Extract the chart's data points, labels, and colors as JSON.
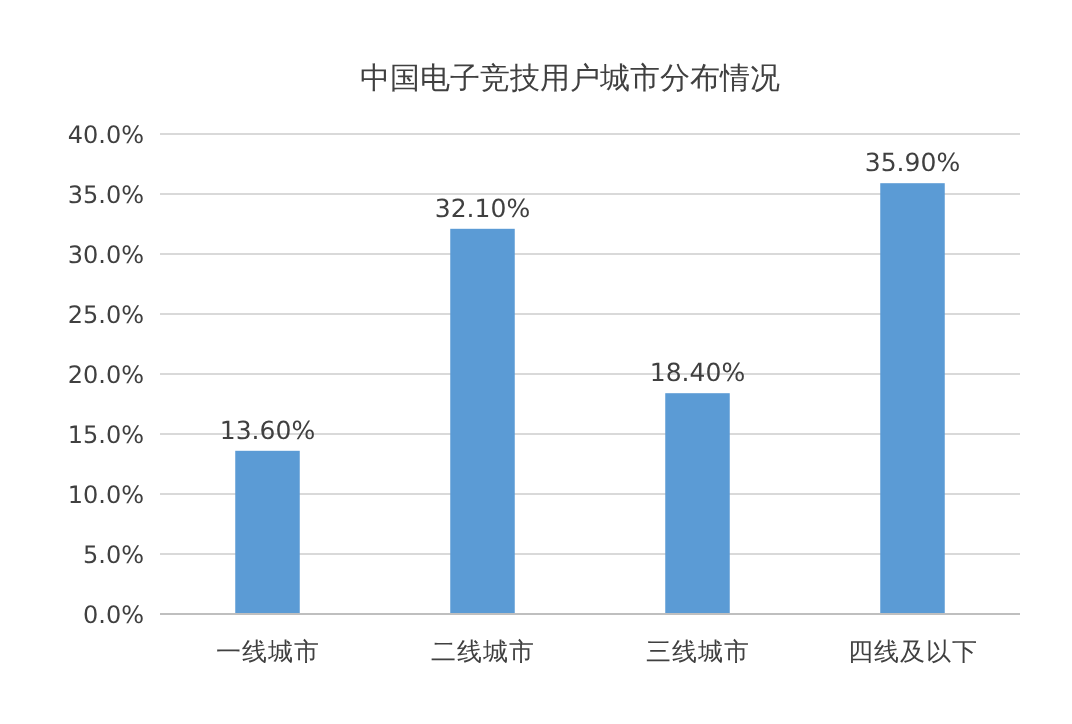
{
  "chart_data": {
    "type": "bar",
    "title": "中国电子竞技用户城市分布情况",
    "categories": [
      "一线城市",
      "二线城市",
      "三线城市",
      "四线及以下"
    ],
    "values": [
      13.6,
      32.1,
      18.4,
      35.9
    ],
    "value_labels": [
      "13.60%",
      "32.10%",
      "18.40%",
      "35.90%"
    ],
    "color": "#5b9bd5",
    "ylim": [
      0,
      40
    ],
    "yticks": [
      {
        "value": 0,
        "label": "0.0%"
      },
      {
        "value": 5,
        "label": "5.0%"
      },
      {
        "value": 10,
        "label": "10.0%"
      },
      {
        "value": 15,
        "label": "15.0%"
      },
      {
        "value": 20,
        "label": "20.0%"
      },
      {
        "value": 25,
        "label": "25.0%"
      },
      {
        "value": 30,
        "label": "30.0%"
      },
      {
        "value": 35,
        "label": "35.0%"
      },
      {
        "value": 40,
        "label": "40.0%"
      }
    ],
    "grid": "y",
    "legend": false
  }
}
